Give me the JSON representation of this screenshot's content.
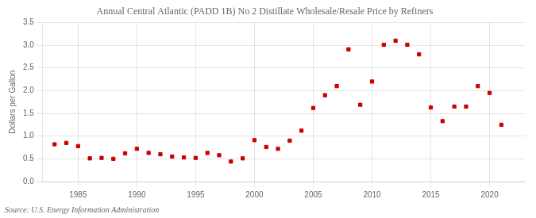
{
  "chart_data": {
    "type": "scatter",
    "title": "Annual Central Atlantic (PADD 1B) No 2 Distillate Wholesale/Resale Price by Refiners",
    "ylabel": "Dollars per Gallon",
    "annotations": [
      "Source: U.S. Energy Information Administration"
    ],
    "x": [
      1983,
      1984,
      1985,
      1986,
      1987,
      1988,
      1989,
      1990,
      1991,
      1992,
      1993,
      1994,
      1995,
      1996,
      1997,
      1998,
      1999,
      2000,
      2001,
      2002,
      2003,
      2004,
      2005,
      2006,
      2007,
      2008,
      2009,
      2010,
      2011,
      2012,
      2013,
      2014,
      2015,
      2016,
      2017,
      2018,
      2019,
      2020,
      2021
    ],
    "values": [
      0.82,
      0.85,
      0.78,
      0.51,
      0.52,
      0.5,
      0.62,
      0.72,
      0.63,
      0.6,
      0.55,
      0.53,
      0.52,
      0.63,
      0.58,
      0.44,
      0.51,
      0.91,
      0.76,
      0.72,
      0.9,
      1.12,
      1.62,
      1.9,
      2.1,
      2.91,
      1.69,
      2.2,
      3.01,
      3.1,
      3.01,
      2.8,
      1.63,
      1.33,
      1.65,
      1.65,
      2.1,
      1.95,
      1.25
    ],
    "color": "#cc0000",
    "marker": "square",
    "xlim": [
      1982,
      2023
    ],
    "ylim": [
      0.0,
      3.5
    ],
    "xticks": [
      1985,
      1990,
      1995,
      2000,
      2005,
      2010,
      2015,
      2020
    ],
    "yticks": [
      {
        "value": 0,
        "label": "0.0"
      },
      0.5,
      {
        "value": 1,
        "label": "1.0"
      },
      1.5,
      {
        "value": 2,
        "label": "2.0"
      },
      2.5,
      {
        "value": 3,
        "label": "3.0"
      },
      3.5
    ],
    "grid": true
  }
}
